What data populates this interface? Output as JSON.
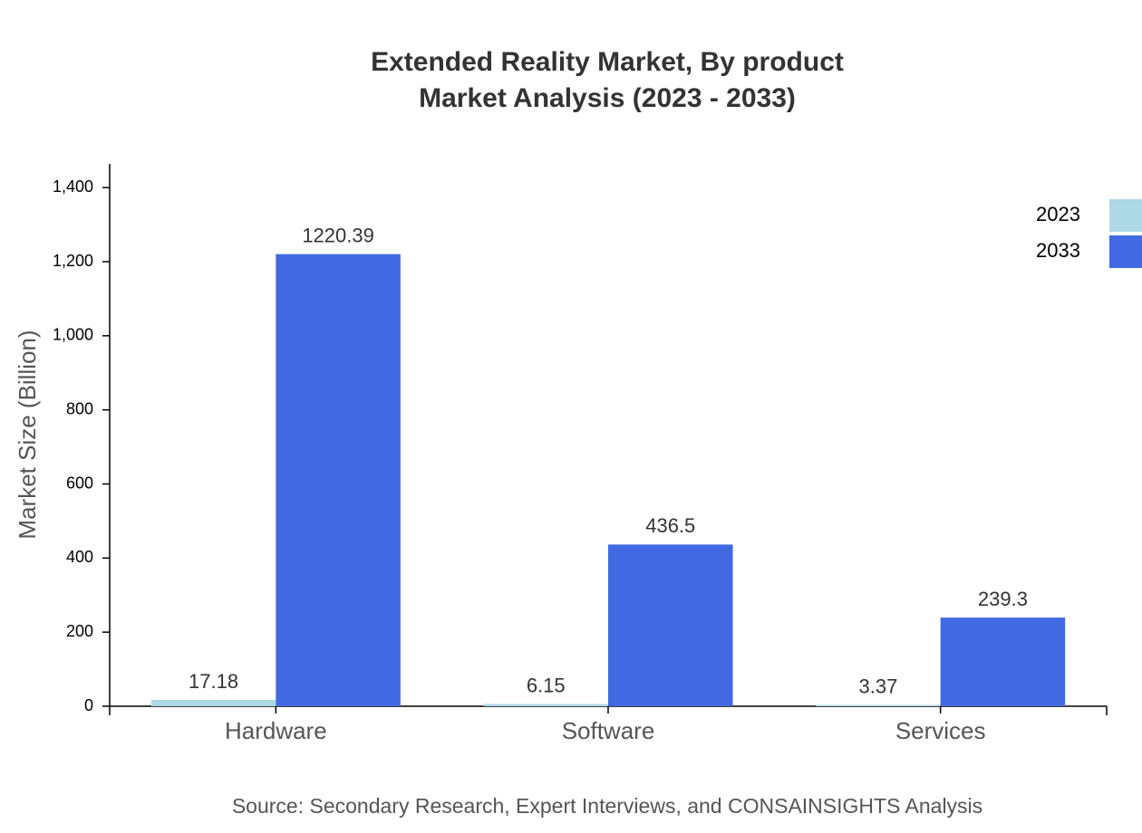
{
  "chart_data": {
    "type": "bar",
    "title": "Extended Reality Market, By product",
    "subtitle": "Market Analysis (2023 - 2033)",
    "y_label": "Market Size (Billion)",
    "source": "Source: Secondary Research, Expert Interviews, and CONSAINSIGHTS Analysis",
    "categories": [
      "Hardware",
      "Software",
      "Services"
    ],
    "series": [
      {
        "name": "2023",
        "color": "#add8e6",
        "values": [
          17.18,
          6.15,
          3.37
        ]
      },
      {
        "name": "2033",
        "color": "#4169e1",
        "values": [
          1220.39,
          436.5,
          239.3
        ]
      }
    ],
    "ylim": [
      0,
      1464
    ],
    "yticks": [
      0,
      200,
      400,
      600,
      800,
      {
        "value": 1000,
        "label": "1,000"
      },
      {
        "value": 1200,
        "label": "1,200"
      },
      {
        "value": 1400,
        "label": "1,400"
      }
    ],
    "legend": "top-right"
  }
}
